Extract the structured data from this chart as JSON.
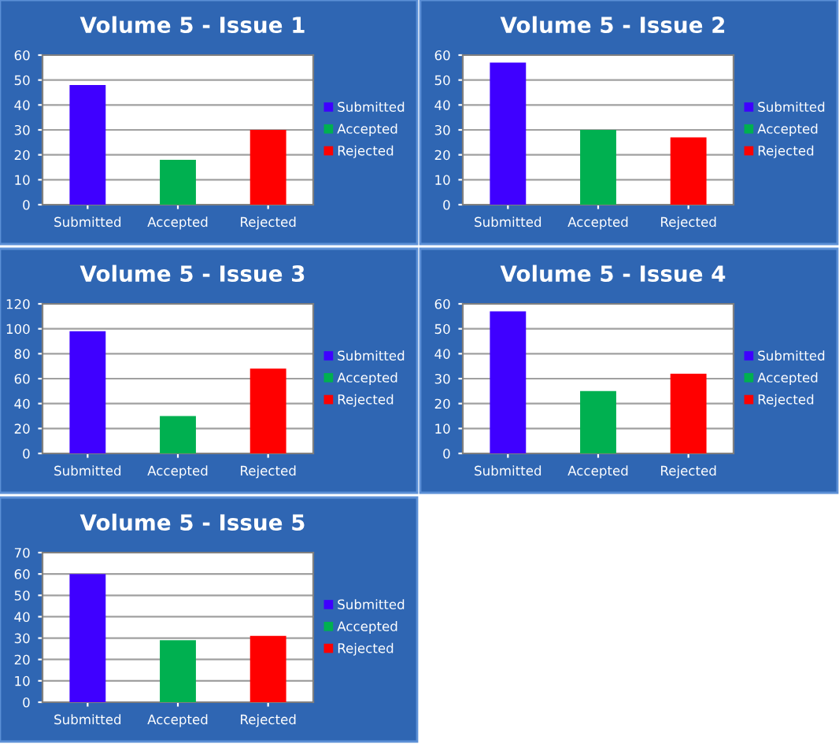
{
  "chart_data": [
    {
      "type": "bar",
      "title": "Volume 5 - Issue 1",
      "categories": [
        "Submitted",
        "Accepted",
        "Rejected"
      ],
      "ylim": [
        0,
        60
      ],
      "yticks": [
        0,
        10,
        20,
        30,
        40,
        50,
        60
      ],
      "grid": "y",
      "legend": "right",
      "series": [
        {
          "name": "Submitted",
          "color": "#3f00ff",
          "values": [
            48,
            null,
            null
          ]
        },
        {
          "name": "Accepted",
          "color": "#00b050",
          "values": [
            null,
            18,
            null
          ]
        },
        {
          "name": "Rejected",
          "color": "#ff0000",
          "values": [
            null,
            null,
            30
          ]
        }
      ]
    },
    {
      "type": "bar",
      "title": "Volume 5 - Issue 2",
      "categories": [
        "Submitted",
        "Accepted",
        "Rejected"
      ],
      "ylim": [
        0,
        60
      ],
      "yticks": [
        0,
        10,
        20,
        30,
        40,
        50,
        60
      ],
      "grid": "y",
      "legend": "right",
      "series": [
        {
          "name": "Submitted",
          "color": "#3f00ff",
          "values": [
            57,
            null,
            null
          ]
        },
        {
          "name": "Accepted",
          "color": "#00b050",
          "values": [
            null,
            30,
            null
          ]
        },
        {
          "name": "Rejected",
          "color": "#ff0000",
          "values": [
            null,
            null,
            27
          ]
        }
      ]
    },
    {
      "type": "bar",
      "title": "Volume 5 - Issue 3",
      "categories": [
        "Submitted",
        "Accepted",
        "Rejected"
      ],
      "ylim": [
        0,
        120
      ],
      "yticks": [
        0,
        20,
        40,
        60,
        80,
        100,
        120
      ],
      "grid": "y",
      "legend": "right",
      "series": [
        {
          "name": "Submitted",
          "color": "#3f00ff",
          "values": [
            98,
            null,
            null
          ]
        },
        {
          "name": "Accepted",
          "color": "#00b050",
          "values": [
            null,
            30,
            null
          ]
        },
        {
          "name": "Rejected",
          "color": "#ff0000",
          "values": [
            null,
            null,
            68
          ]
        }
      ]
    },
    {
      "type": "bar",
      "title": "Volume 5 - Issue 4",
      "categories": [
        "Submitted",
        "Accepted",
        "Rejected"
      ],
      "ylim": [
        0,
        60
      ],
      "yticks": [
        0,
        10,
        20,
        30,
        40,
        50,
        60
      ],
      "grid": "y",
      "legend": "right",
      "series": [
        {
          "name": "Submitted",
          "color": "#3f00ff",
          "values": [
            57,
            null,
            null
          ]
        },
        {
          "name": "Accepted",
          "color": "#00b050",
          "values": [
            null,
            25,
            null
          ]
        },
        {
          "name": "Rejected",
          "color": "#ff0000",
          "values": [
            null,
            null,
            32
          ]
        }
      ]
    },
    {
      "type": "bar",
      "title": "Volume 5 - Issue 5",
      "categories": [
        "Submitted",
        "Accepted",
        "Rejected"
      ],
      "ylim": [
        0,
        70
      ],
      "yticks": [
        0,
        10,
        20,
        30,
        40,
        50,
        60,
        70
      ],
      "grid": "y",
      "legend": "right",
      "series": [
        {
          "name": "Submitted",
          "color": "#3f00ff",
          "values": [
            60,
            null,
            null
          ]
        },
        {
          "name": "Accepted",
          "color": "#00b050",
          "values": [
            null,
            29,
            null
          ]
        },
        {
          "name": "Rejected",
          "color": "#ff0000",
          "values": [
            null,
            null,
            31
          ]
        }
      ]
    }
  ]
}
